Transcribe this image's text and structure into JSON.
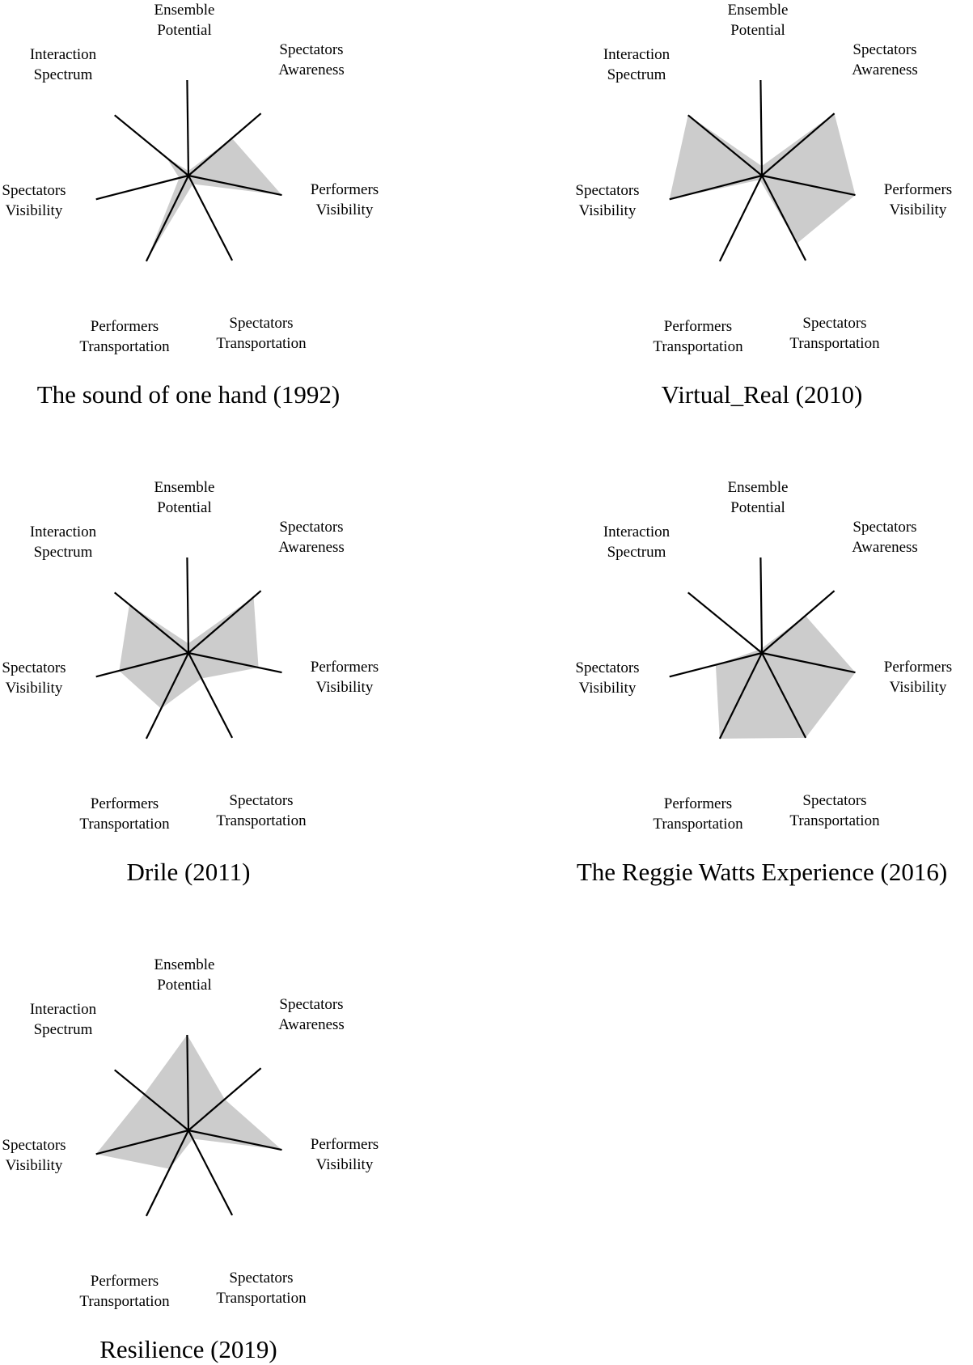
{
  "figure": {
    "fill_color": "#cccccc",
    "line_color": "#000000",
    "axes": [
      [
        "Ensemble",
        "Potential"
      ],
      [
        "Spectators",
        "Awareness"
      ],
      [
        "Performers",
        "Visibility"
      ],
      [
        "Spectators",
        "Transportation"
      ],
      [
        "Performers",
        "Transportation"
      ],
      [
        "Spectators",
        "Visibility"
      ],
      [
        "Interaction",
        "Spectrum"
      ]
    ]
  },
  "chart_data": [
    {
      "type": "radar",
      "title": "The sound of one hand (1992)",
      "rmax": 1,
      "values": [
        0.05,
        0.6,
        1.0,
        0.1,
        1.0,
        0.1,
        0.3
      ]
    },
    {
      "type": "radar",
      "title": "Virtual_Real (2010)",
      "rmax": 1,
      "values": [
        0.1,
        1.0,
        1.0,
        0.8,
        0.05,
        1.0,
        1.0
      ]
    },
    {
      "type": "radar",
      "title": "Drile (2011)",
      "rmax": 1,
      "values": [
        0.1,
        0.9,
        0.75,
        0.3,
        0.65,
        0.75,
        0.8
      ]
    },
    {
      "type": "radar",
      "title": "The Reggie Watts Experience (2016)",
      "rmax": 1,
      "values": [
        0.05,
        0.6,
        1.0,
        1.0,
        1.0,
        0.5,
        0.05
      ]
    },
    {
      "type": "radar",
      "title": "Resilience (2019)",
      "rmax": 1,
      "values": [
        1.0,
        0.5,
        1.0,
        0.1,
        0.45,
        1.0,
        0.6
      ]
    }
  ]
}
